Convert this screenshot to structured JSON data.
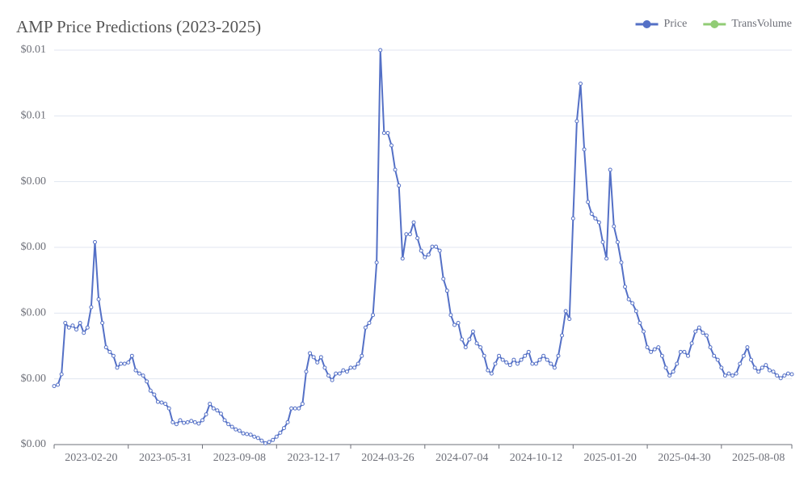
{
  "chart_data": {
    "type": "line",
    "title": "AMP Price Predictions (2023-2025)",
    "categories": [
      null,
      null,
      null,
      null,
      null,
      null,
      null,
      null,
      null,
      null,
      "2023-02-20",
      null,
      null,
      null,
      null,
      null,
      null,
      null,
      null,
      null,
      null,
      null,
      null,
      null,
      null,
      null,
      null,
      null,
      null,
      null,
      "2023-05-31",
      null,
      null,
      null,
      null,
      null,
      null,
      null,
      null,
      null,
      null,
      null,
      null,
      null,
      null,
      null,
      null,
      null,
      null,
      null,
      "2023-09-08",
      null,
      null,
      null,
      null,
      null,
      null,
      null,
      null,
      null,
      null,
      null,
      null,
      null,
      null,
      null,
      null,
      null,
      null,
      null,
      "2023-12-17",
      null,
      null,
      null,
      null,
      null,
      null,
      null,
      null,
      null,
      null,
      null,
      null,
      null,
      null,
      null,
      null,
      null,
      null,
      null,
      "2024-03-26",
      null,
      null,
      null,
      null,
      null,
      null,
      null,
      null,
      null,
      null,
      null,
      null,
      null,
      null,
      null,
      null,
      null,
      null,
      null,
      "2024-07-04",
      null,
      null,
      null,
      null,
      null,
      null,
      null,
      null,
      null,
      null,
      null,
      null,
      null,
      null,
      null,
      null,
      null,
      null,
      null,
      "2024-10-12",
      null,
      null,
      null,
      null,
      null,
      null,
      null,
      null,
      null,
      null,
      null,
      null,
      null,
      null,
      null,
      null,
      null,
      null,
      null,
      "2025-01-20",
      null,
      null,
      null,
      null,
      null,
      null,
      null,
      null,
      null,
      null,
      null,
      null,
      null,
      null,
      null,
      null,
      null,
      null,
      null,
      "2025-04-30",
      null,
      null,
      null,
      null,
      null,
      null,
      null,
      null,
      null,
      null,
      null,
      null,
      null,
      null,
      null,
      null,
      null,
      null,
      null,
      "2025-08-08",
      null,
      null,
      null,
      null,
      null,
      null,
      null,
      null,
      null
    ],
    "series": [
      {
        "name": "Price",
        "color": "#5470c6",
        "values": [
          0.00089,
          0.00091,
          0.00107,
          0.00185,
          0.00178,
          0.00181,
          0.00175,
          0.00185,
          0.0017,
          0.00178,
          0.00209,
          0.00308,
          0.00221,
          0.00185,
          0.00148,
          0.00141,
          0.00135,
          0.00117,
          0.00123,
          0.00123,
          0.00125,
          0.00135,
          0.00113,
          0.00108,
          0.00105,
          0.00096,
          0.00082,
          0.00076,
          0.00065,
          0.00064,
          0.00062,
          0.00055,
          0.00034,
          0.00031,
          0.00037,
          0.00033,
          0.00034,
          0.00036,
          0.00034,
          0.00032,
          0.00037,
          0.00046,
          0.00062,
          0.00055,
          0.00052,
          0.00047,
          0.00037,
          0.00031,
          0.00027,
          0.00023,
          0.00021,
          0.00017,
          0.00016,
          0.00015,
          0.00012,
          0.0001,
          6e-05,
          2e-05,
          4e-05,
          7e-05,
          0.00012,
          0.00018,
          0.00025,
          0.00034,
          0.00055,
          0.00055,
          0.00055,
          0.00062,
          0.00111,
          0.00139,
          0.00133,
          0.00125,
          0.00133,
          0.00117,
          0.00105,
          0.00098,
          0.00108,
          0.00108,
          0.00113,
          0.00111,
          0.00117,
          0.00117,
          0.00123,
          0.00135,
          0.00178,
          0.00185,
          0.00197,
          0.00277,
          0.006,
          0.00474,
          0.00474,
          0.00455,
          0.00418,
          0.00394,
          0.00283,
          0.0032,
          0.0032,
          0.00338,
          0.00314,
          0.00295,
          0.00285,
          0.00289,
          0.00301,
          0.00301,
          0.00295,
          0.00252,
          0.00234,
          0.00197,
          0.00182,
          0.00185,
          0.0016,
          0.00148,
          0.0016,
          0.00172,
          0.00154,
          0.00148,
          0.00135,
          0.00113,
          0.00108,
          0.00123,
          0.00135,
          0.00129,
          0.00125,
          0.00121,
          0.00129,
          0.00123,
          0.00129,
          0.00135,
          0.00141,
          0.00123,
          0.00123,
          0.00129,
          0.00135,
          0.00129,
          0.00123,
          0.00117,
          0.00135,
          0.00166,
          0.00203,
          0.00191,
          0.00344,
          0.00492,
          0.00549,
          0.00449,
          0.00369,
          0.00351,
          0.00344,
          0.00338,
          0.00308,
          0.00283,
          0.00418,
          0.00332,
          0.00308,
          0.00277,
          0.0024,
          0.00221,
          0.00215,
          0.00203,
          0.00185,
          0.00172,
          0.00148,
          0.00141,
          0.00145,
          0.00148,
          0.00135,
          0.00117,
          0.00105,
          0.00111,
          0.00123,
          0.00141,
          0.00141,
          0.00135,
          0.00154,
          0.00172,
          0.00178,
          0.0017,
          0.00166,
          0.00148,
          0.00135,
          0.00129,
          0.00117,
          0.00105,
          0.00108,
          0.00105,
          0.00108,
          0.00123,
          0.00135,
          0.00148,
          0.00129,
          0.00117,
          0.00111,
          0.00117,
          0.00121,
          0.00113,
          0.00111,
          0.00105,
          0.00101,
          0.00105,
          0.00108,
          0.00107
        ]
      },
      {
        "name": "TransVolume",
        "color": "#91cc75",
        "values": [
          null,
          null,
          null,
          null,
          null,
          null,
          null,
          null,
          null,
          null,
          null,
          null,
          null,
          null,
          null,
          null,
          null,
          null,
          null,
          null,
          null,
          null,
          null,
          null,
          null,
          null,
          null,
          null,
          null,
          null,
          null,
          null,
          null,
          null,
          null,
          null,
          null,
          null,
          null,
          null,
          null,
          null,
          null,
          null,
          null,
          null,
          null,
          null,
          null,
          null,
          null,
          null,
          null,
          null,
          null,
          null,
          null,
          null,
          null,
          null,
          null,
          null,
          null,
          null,
          null,
          null,
          null,
          null,
          null,
          null,
          null,
          null,
          null,
          null,
          null,
          null,
          null,
          null,
          null,
          null,
          null,
          null,
          null,
          null,
          null,
          null,
          null,
          null,
          null,
          null,
          null,
          null,
          null,
          null,
          null,
          null,
          null,
          null,
          null,
          null,
          null,
          null,
          null,
          null,
          null,
          null,
          null,
          null,
          null,
          null,
          null,
          null,
          null,
          null,
          null,
          null,
          null,
          null,
          null,
          null,
          null,
          null,
          null,
          null,
          null,
          null,
          null,
          null,
          null,
          null,
          null,
          null,
          null,
          null,
          null,
          null,
          null,
          null,
          null,
          null,
          null,
          null,
          null,
          null,
          null,
          null,
          null,
          null,
          null,
          null,
          null,
          null,
          null,
          null,
          null,
          null,
          null,
          null,
          null,
          null,
          null,
          null,
          null,
          null,
          null,
          null,
          null,
          null,
          null,
          null,
          null,
          null,
          null,
          null,
          null,
          null,
          null,
          null,
          null,
          null,
          null,
          null,
          null,
          null,
          null,
          null,
          null,
          null,
          null,
          null,
          null,
          null,
          null,
          null,
          null,
          null,
          null,
          null,
          null,
          null
        ]
      }
    ],
    "ylim": [
      0,
      0.006
    ],
    "yticks": [
      {
        "value": 0,
        "label": "$0.00"
      },
      {
        "value": 0.001,
        "label": "$0.00"
      },
      {
        "value": 0.002,
        "label": "$0.00"
      },
      {
        "value": 0.003,
        "label": "$0.00"
      },
      {
        "value": 0.004,
        "label": "$0.00"
      },
      {
        "value": 0.005,
        "label": "$0.01"
      },
      {
        "value": 0.006,
        "label": "$0.01"
      }
    ],
    "grid": true,
    "legend": "top-right"
  }
}
